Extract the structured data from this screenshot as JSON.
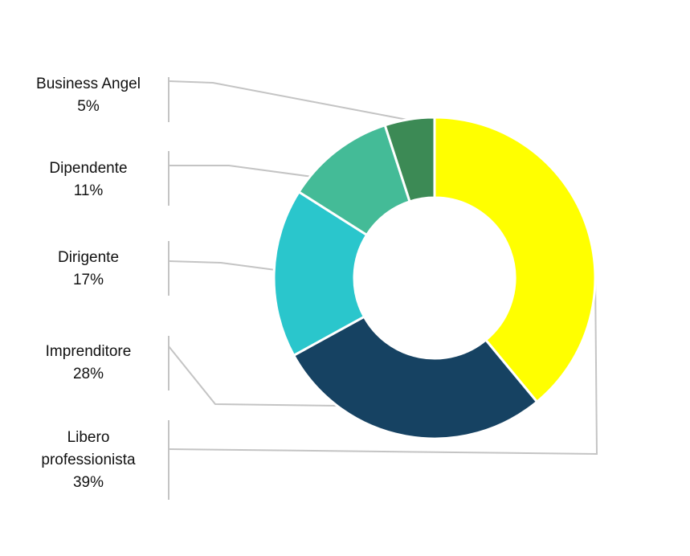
{
  "chart_data": {
    "type": "pie",
    "variant": "donut",
    "slices": [
      {
        "label": "Libero professionista",
        "label_lines": [
          "Libero",
          "professionista"
        ],
        "value": 39,
        "value_text": "39%",
        "color": "#ffff00"
      },
      {
        "label": "Imprenditore",
        "label_lines": [
          "Imprenditore"
        ],
        "value": 28,
        "value_text": "28%",
        "color": "#164262"
      },
      {
        "label": "Dirigente",
        "label_lines": [
          "Dirigente"
        ],
        "value": 17,
        "value_text": "17%",
        "color": "#2ac6cc"
      },
      {
        "label": "Dipendente",
        "label_lines": [
          "Dipendente"
        ],
        "value": 11,
        "value_text": "11%",
        "color": "#44bb97"
      },
      {
        "label": "Business Angel",
        "label_lines": [
          "Business Angel"
        ],
        "value": 5,
        "value_text": "5%",
        "color": "#3c8a55"
      }
    ],
    "legend": "left-callouts",
    "leader_line_color": "#c4c4c4"
  }
}
